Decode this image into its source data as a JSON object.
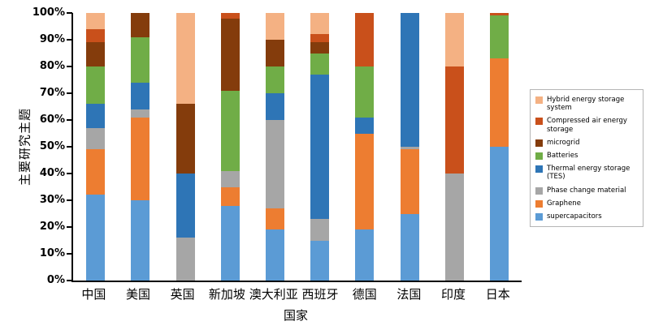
{
  "y_axis": {
    "label": "主要研究主题",
    "ticks": [
      "0%",
      "10%",
      "20%",
      "30%",
      "40%",
      "50%",
      "60%",
      "70%",
      "80%",
      "90%",
      "100%"
    ]
  },
  "x_axis": {
    "label": "国家"
  },
  "chart_data": {
    "type": "bar",
    "stacked": true,
    "percent": true,
    "title": "",
    "xlabel": "国家",
    "ylabel": "主要研究主题",
    "ylim": [
      0,
      100
    ],
    "grid": false,
    "legend_position": "right",
    "categories": [
      "中国",
      "美国",
      "英国",
      "新加坡",
      "澳大利亚",
      "西班牙",
      "德国",
      "法国",
      "印度",
      "日本"
    ],
    "series": [
      {
        "name": "supercapacitors",
        "color": "#5B9BD5",
        "values": [
          32,
          30,
          0,
          28,
          19,
          15,
          19,
          25,
          0,
          50
        ]
      },
      {
        "name": "Graphene",
        "color": "#ED7D31",
        "values": [
          17,
          31,
          0,
          7,
          8,
          0,
          36,
          24,
          0,
          33
        ]
      },
      {
        "name": "Phase change material",
        "color": "#A6A6A6",
        "values": [
          8,
          3,
          16,
          6,
          33,
          8,
          0,
          1,
          40,
          0
        ]
      },
      {
        "name": "Thermal energy storage (TES)",
        "color": "#2E75B6",
        "values": [
          9,
          10,
          24,
          0,
          10,
          54,
          6,
          50,
          0,
          0
        ]
      },
      {
        "name": "Batteries",
        "color": "#70AD47",
        "values": [
          14,
          17,
          0,
          30,
          10,
          8,
          19,
          0,
          0,
          16
        ]
      },
      {
        "name": "microgrid",
        "color": "#843C0C",
        "values": [
          9,
          9,
          26,
          27,
          10,
          4,
          0,
          0,
          0,
          0
        ]
      },
      {
        "name": "Compressed air energy storage",
        "color": "#C9501B",
        "values": [
          5,
          0,
          0,
          2,
          0,
          3,
          20,
          0,
          40,
          1
        ]
      },
      {
        "name": "Hybrid energy storage system",
        "color": "#F4B183",
        "values": [
          6,
          0,
          34,
          0,
          10,
          8,
          0,
          0,
          20,
          0
        ]
      }
    ]
  }
}
